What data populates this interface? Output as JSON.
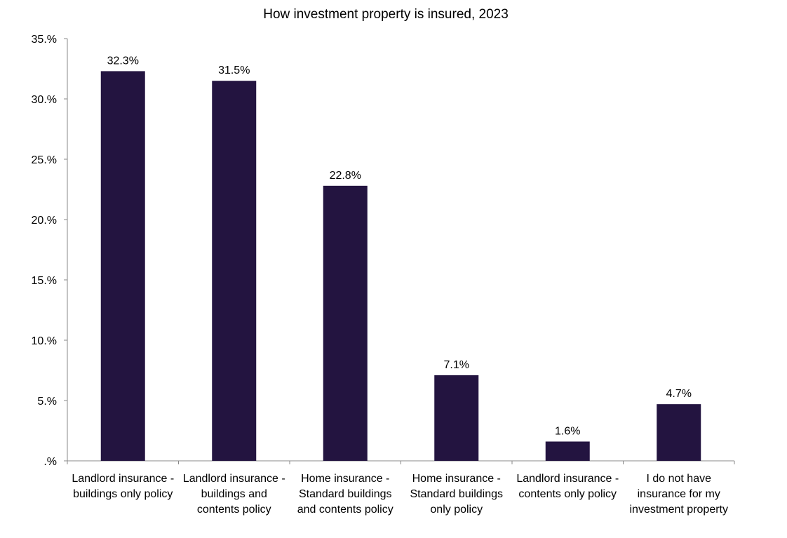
{
  "chart_data": {
    "type": "bar",
    "title": "How investment property is insured, 2023",
    "xlabel": "",
    "ylabel": "",
    "ylim": [
      0,
      35
    ],
    "yticks": [
      ".%",
      "5.%",
      "10.%",
      "15.%",
      "20.%",
      "25.%",
      "30.%",
      "35.%"
    ],
    "categories": [
      [
        "Landlord insurance -",
        "buildings only policy"
      ],
      [
        "Landlord insurance -",
        "buildings and",
        "contents policy"
      ],
      [
        "Home insurance -",
        "Standard buildings",
        "and contents policy"
      ],
      [
        "Home insurance -",
        "Standard buildings",
        "only policy"
      ],
      [
        "Landlord insurance -",
        "contents only policy"
      ],
      [
        "I do not have",
        "insurance for my",
        "investment property"
      ]
    ],
    "values": [
      32.3,
      31.5,
      22.8,
      7.1,
      1.6,
      4.7
    ],
    "data_labels": [
      "32.3%",
      "31.5%",
      "22.8%",
      "7.1%",
      "1.6%",
      "4.7%"
    ],
    "bar_color": "#231440",
    "grid": false,
    "legend": "none"
  }
}
